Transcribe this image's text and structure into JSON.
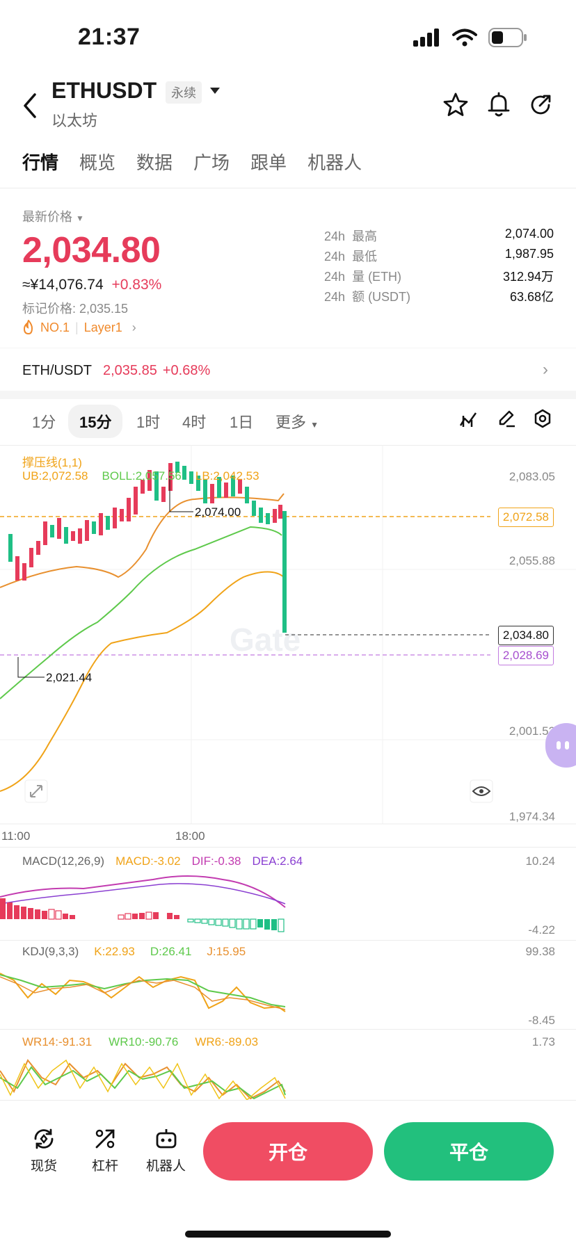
{
  "status": {
    "time": "21:37"
  },
  "header": {
    "pair": "ETHUSDT",
    "badge": "永续",
    "subtitle": "以太坊"
  },
  "tabs": [
    "行情",
    "概览",
    "数据",
    "广场",
    "跟单",
    "机器人"
  ],
  "price": {
    "label": "最新价格",
    "last": "2,034.80",
    "cny": "≈¥14,076.74",
    "change": "+0.83%",
    "mark": "标记价格: 2,035.15",
    "rank": "NO.1",
    "tag": "Layer1"
  },
  "stats": [
    {
      "prefix": "24h",
      "label": "最高",
      "value": "2,074.00"
    },
    {
      "prefix": "24h",
      "label": "最低",
      "value": "1,987.95"
    },
    {
      "prefix": "24h",
      "label": "量 (ETH)",
      "value": "312.94万"
    },
    {
      "prefix": "24h",
      "label": "额 (USDT)",
      "value": "63.68亿"
    }
  ],
  "spot": {
    "pair": "ETH/USDT",
    "price": "2,035.85",
    "change": "+0.68%"
  },
  "timeframes": [
    "1分",
    "15分",
    "1时",
    "4时",
    "1日",
    "更多"
  ],
  "chart": {
    "indicator_title": "撑压线(1,1)",
    "ub": "UB:2,072.58",
    "boll": "BOLL:2,057.56",
    "lb": "LB:2,042.53",
    "axis": [
      "2,083.05",
      "2,055.88",
      "2,001.52",
      "1,974.34"
    ],
    "tag_ub": "2,072.58",
    "tag_last": "2,034.80",
    "tag_low": "2,028.69",
    "hi_label": "2,074.00",
    "lo_label": "2,021.44",
    "x_labels": [
      "11:00",
      "18:00"
    ],
    "watermark": "Gate"
  },
  "macd": {
    "title": "MACD(12,26,9)",
    "macd": "MACD:-3.02",
    "dif": "DIF:-0.38",
    "dea": "DEA:2.64",
    "max": "10.24",
    "min": "-4.22"
  },
  "kdj": {
    "title": "KDJ(9,3,3)",
    "k": "K:22.93",
    "d": "D:26.41",
    "j": "J:15.95",
    "max": "99.38",
    "min": "-8.45"
  },
  "wr": {
    "wr14": "WR14:-91.31",
    "wr10": "WR10:-90.76",
    "wr6": "WR6:-89.03",
    "max": "1.73"
  },
  "bottom": {
    "spot": "现货",
    "leverage": "杠杆",
    "bot": "机器人",
    "open": "开仓",
    "close": "平仓"
  },
  "colors": {
    "up": "#e63b5a",
    "down": "#1fbf85",
    "accent": "#f0a318"
  }
}
